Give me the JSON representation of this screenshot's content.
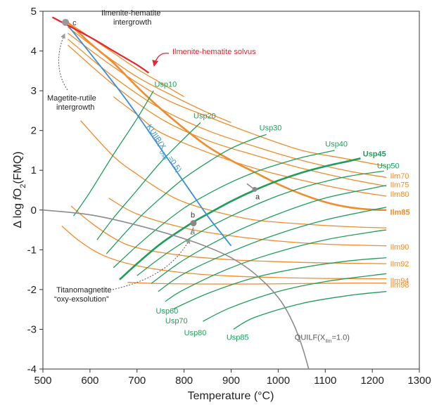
{
  "chart_data": {
    "type": "line",
    "title": "",
    "xlabel": "Temperature (°C)",
    "ylabel_parts": [
      "Δ log ",
      "f",
      "O",
      "2",
      "(FMQ)"
    ],
    "xlim": [
      500,
      1300
    ],
    "ylim": [
      -4,
      5
    ],
    "xticks": [
      500,
      600,
      700,
      800,
      900,
      1000,
      1100,
      1200,
      1300
    ],
    "yticks": [
      -4,
      -3,
      -2,
      -1,
      0,
      1,
      2,
      3,
      4,
      5
    ],
    "grid": false,
    "colors": {
      "ilm": "#f08c2c",
      "usp": "#1f9e5a",
      "kuiib": "#3a8fd6",
      "quilf": "#8c8c8c",
      "solvus": "#e8242c",
      "annot": "#333333"
    },
    "ilm_series": [
      {
        "name": "",
        "bold": false,
        "points": [
          [
            553,
            4.72
          ],
          [
            600,
            4.35
          ],
          [
            650,
            3.95
          ],
          [
            700,
            3.55
          ],
          [
            750,
            3.2
          ],
          [
            800,
            2.85
          ]
        ]
      },
      {
        "name": "",
        "bold": false,
        "points": [
          [
            553,
            4.6
          ],
          [
            620,
            4.0
          ],
          [
            700,
            3.35
          ],
          [
            780,
            2.85
          ],
          [
            850,
            2.45
          ],
          [
            900,
            2.2
          ]
        ]
      },
      {
        "name": "",
        "bold": false,
        "points": [
          [
            553,
            4.45
          ],
          [
            650,
            3.6
          ],
          [
            750,
            2.85
          ],
          [
            850,
            2.35
          ],
          [
            950,
            1.9
          ],
          [
            1050,
            1.5
          ],
          [
            1140,
            1.3
          ],
          [
            1230,
            1.1
          ]
        ]
      },
      {
        "name": "Ilm70",
        "bold": false,
        "points": [
          [
            553,
            4.3
          ],
          [
            650,
            3.35
          ],
          [
            750,
            2.55
          ],
          [
            850,
            2.0
          ],
          [
            950,
            1.6
          ],
          [
            1050,
            1.25
          ],
          [
            1150,
            0.98
          ],
          [
            1230,
            0.82
          ]
        ]
      },
      {
        "name": "Ilm75",
        "bold": false,
        "points": [
          [
            553,
            4.15
          ],
          [
            650,
            3.15
          ],
          [
            750,
            2.3
          ],
          [
            850,
            1.75
          ],
          [
            950,
            1.38
          ],
          [
            1050,
            1.05
          ],
          [
            1150,
            0.78
          ],
          [
            1230,
            0.6
          ]
        ]
      },
      {
        "name": "Ilm80",
        "bold": false,
        "points": [
          [
            650,
            2.85
          ],
          [
            700,
            2.4
          ],
          [
            750,
            1.95
          ],
          [
            850,
            1.45
          ],
          [
            950,
            1.05
          ],
          [
            1050,
            0.75
          ],
          [
            1150,
            0.5
          ],
          [
            1230,
            0.35
          ]
        ]
      },
      {
        "name": "Ilm85",
        "bold": true,
        "points": [
          [
            553,
            4.72
          ],
          [
            600,
            4.2
          ],
          [
            650,
            3.7
          ],
          [
            700,
            3.1
          ],
          [
            750,
            2.55
          ],
          [
            800,
            2.05
          ],
          [
            850,
            1.6
          ],
          [
            900,
            1.25
          ],
          [
            950,
            0.95
          ],
          [
            1000,
            0.65
          ],
          [
            1050,
            0.4
          ],
          [
            1100,
            0.2
          ],
          [
            1150,
            0.07
          ],
          [
            1200,
            0.01
          ],
          [
            1230,
            0.0
          ]
        ]
      },
      {
        "name": "",
        "bold": false,
        "points": [
          [
            580,
            2.25
          ],
          [
            650,
            1.35
          ],
          [
            700,
            0.9
          ],
          [
            750,
            0.5
          ],
          [
            800,
            0.2
          ],
          [
            870,
            -0.05
          ],
          [
            950,
            -0.25
          ],
          [
            1050,
            -0.35
          ],
          [
            1150,
            -0.42
          ],
          [
            1230,
            -0.45
          ]
        ]
      },
      {
        "name": "Ilm90",
        "bold": false,
        "points": [
          [
            640,
            0.3
          ],
          [
            700,
            -0.1
          ],
          [
            800,
            -0.45
          ],
          [
            900,
            -0.65
          ],
          [
            1000,
            -0.78
          ],
          [
            1100,
            -0.86
          ],
          [
            1230,
            -0.9
          ]
        ]
      },
      {
        "name": "Ilm92",
        "bold": false,
        "points": [
          [
            560,
            0.1
          ],
          [
            600,
            -0.3
          ],
          [
            650,
            -0.7
          ],
          [
            700,
            -0.95
          ],
          [
            800,
            -1.15
          ],
          [
            900,
            -1.25
          ],
          [
            1000,
            -1.3
          ],
          [
            1100,
            -1.33
          ],
          [
            1230,
            -1.35
          ]
        ]
      },
      {
        "name": "Ilm94",
        "bold": false,
        "points": [
          [
            540,
            -0.4
          ],
          [
            580,
            -0.8
          ],
          [
            630,
            -1.15
          ],
          [
            700,
            -1.4
          ],
          [
            800,
            -1.58
          ],
          [
            900,
            -1.66
          ],
          [
            1000,
            -1.7
          ],
          [
            1100,
            -1.72
          ],
          [
            1230,
            -1.73
          ]
        ]
      },
      {
        "name": "Ilm98",
        "bold": false,
        "points": [
          [
            680,
            -1.82
          ],
          [
            750,
            -1.85
          ],
          [
            850,
            -1.86
          ],
          [
            950,
            -1.86
          ],
          [
            1050,
            -1.85
          ],
          [
            1150,
            -1.84
          ],
          [
            1230,
            -1.84
          ]
        ]
      }
    ],
    "ilm_label_points": [
      [
        1238,
        0.86
      ],
      [
        1238,
        0.64
      ],
      [
        1238,
        0.4
      ],
      [
        1238,
        -0.05
      ],
      [
        1238,
        -0.92
      ],
      [
        1238,
        -1.35
      ],
      [
        1238,
        -1.77
      ],
      [
        1238,
        -1.88
      ]
    ],
    "usp_series": [
      {
        "name": "Usp10",
        "bold": false,
        "points": [
          [
            565,
            -0.15
          ],
          [
            600,
            0.45
          ],
          [
            650,
            1.4
          ],
          [
            700,
            2.3
          ],
          [
            735,
            3.0
          ]
        ]
      },
      {
        "name": "Usp20",
        "bold": false,
        "points": [
          [
            615,
            -0.75
          ],
          [
            650,
            -0.2
          ],
          [
            700,
            0.5
          ],
          [
            750,
            1.2
          ],
          [
            800,
            1.8
          ],
          [
            835,
            2.2
          ]
        ]
      },
      {
        "name": "Usp30",
        "bold": false,
        "points": [
          [
            635,
            -1.1
          ],
          [
            700,
            -0.25
          ],
          [
            750,
            0.3
          ],
          [
            800,
            0.8
          ],
          [
            850,
            1.2
          ],
          [
            900,
            1.55
          ],
          [
            950,
            1.8
          ],
          [
            975,
            1.9
          ]
        ]
      },
      {
        "name": "Usp40",
        "bold": false,
        "points": [
          [
            650,
            -1.45
          ],
          [
            700,
            -0.9
          ],
          [
            750,
            -0.4
          ],
          [
            800,
            0.05
          ],
          [
            850,
            0.4
          ],
          [
            900,
            0.7
          ],
          [
            950,
            0.95
          ],
          [
            1000,
            1.15
          ],
          [
            1050,
            1.32
          ],
          [
            1100,
            1.45
          ],
          [
            1120,
            1.5
          ]
        ]
      },
      {
        "name": "Usp45",
        "bold": true,
        "points": [
          [
            663,
            -1.75
          ],
          [
            700,
            -1.35
          ],
          [
            750,
            -0.85
          ],
          [
            800,
            -0.45
          ],
          [
            820,
            -0.3
          ],
          [
            850,
            -0.1
          ],
          [
            900,
            0.22
          ],
          [
            950,
            0.5
          ],
          [
            1000,
            0.74
          ],
          [
            1050,
            0.94
          ],
          [
            1100,
            1.1
          ],
          [
            1150,
            1.23
          ],
          [
            1175,
            1.3
          ]
        ]
      },
      {
        "name": "Usp50",
        "bold": false,
        "points": [
          [
            700,
            -1.65
          ],
          [
            750,
            -1.2
          ],
          [
            800,
            -0.8
          ],
          [
            850,
            -0.45
          ],
          [
            900,
            -0.15
          ],
          [
            950,
            0.12
          ],
          [
            1000,
            0.36
          ],
          [
            1050,
            0.56
          ],
          [
            1100,
            0.72
          ],
          [
            1150,
            0.85
          ],
          [
            1200,
            0.94
          ],
          [
            1225,
            0.98
          ]
        ]
      },
      {
        "name": "",
        "bold": false,
        "points": [
          [
            730,
            -1.85
          ],
          [
            800,
            -1.25
          ],
          [
            900,
            -0.6
          ],
          [
            1000,
            -0.1
          ],
          [
            1100,
            0.3
          ],
          [
            1200,
            0.55
          ],
          [
            1230,
            0.62
          ]
        ]
      },
      {
        "name": "",
        "bold": false,
        "points": [
          [
            745,
            -2.05
          ],
          [
            800,
            -1.6
          ],
          [
            900,
            -1.05
          ],
          [
            1000,
            -0.6
          ],
          [
            1100,
            -0.25
          ],
          [
            1200,
            0.0
          ],
          [
            1230,
            0.07
          ]
        ]
      },
      {
        "name": "Usp60",
        "bold": false,
        "points": [
          [
            760,
            -2.3
          ],
          [
            800,
            -2.0
          ],
          [
            900,
            -1.45
          ],
          [
            1000,
            -1.05
          ],
          [
            1100,
            -0.75
          ],
          [
            1200,
            -0.55
          ],
          [
            1230,
            -0.5
          ]
        ]
      },
      {
        "name": "Usp70",
        "bold": false,
        "points": [
          [
            775,
            -2.5
          ],
          [
            850,
            -2.1
          ],
          [
            950,
            -1.7
          ],
          [
            1050,
            -1.45
          ],
          [
            1150,
            -1.28
          ],
          [
            1230,
            -1.2
          ]
        ]
      },
      {
        "name": "Usp80",
        "bold": false,
        "points": [
          [
            840,
            -2.8
          ],
          [
            900,
            -2.45
          ],
          [
            1000,
            -2.05
          ],
          [
            1100,
            -1.8
          ],
          [
            1230,
            -1.6
          ]
        ]
      },
      {
        "name": "Usp85",
        "bold": false,
        "points": [
          [
            905,
            -3.0
          ],
          [
            950,
            -2.7
          ],
          [
            1050,
            -2.35
          ],
          [
            1150,
            -2.15
          ],
          [
            1230,
            -2.05
          ]
        ]
      }
    ],
    "usp_label_points": [
      [
        737,
        3.1
      ],
      [
        820,
        2.3
      ],
      [
        960,
        2.0
      ],
      [
        1100,
        1.6
      ],
      [
        1180,
        1.35
      ],
      [
        1210,
        1.05
      ],
      [
        740,
        -2.6
      ],
      [
        760,
        -2.85
      ],
      [
        800,
        -3.15
      ],
      [
        890,
        -3.27
      ]
    ],
    "kuiib": {
      "label_parts": [
        "KUIIB(X",
        "Usp",
        "=0.5)"
      ],
      "points": [
        [
          548,
          4.72
        ],
        [
          650,
          3.2
        ],
        [
          700,
          2.4
        ],
        [
          750,
          1.55
        ],
        [
          800,
          0.7
        ],
        [
          850,
          -0.15
        ],
        [
          880,
          -0.6
        ],
        [
          900,
          -0.9
        ]
      ],
      "label_point": [
        720,
        2.1
      ]
    },
    "quilf": {
      "label_parts": [
        "QUILF(X",
        "Ilm",
        "=1.0)"
      ],
      "points": [
        [
          500,
          0.0
        ],
        [
          600,
          -0.12
        ],
        [
          700,
          -0.38
        ],
        [
          800,
          -0.72
        ],
        [
          850,
          -0.93
        ],
        [
          900,
          -1.2
        ],
        [
          950,
          -1.6
        ],
        [
          1000,
          -2.2
        ],
        [
          1030,
          -2.8
        ],
        [
          1050,
          -3.4
        ],
        [
          1065,
          -4.0
        ]
      ],
      "label_point": [
        1035,
        -3.27
      ]
    },
    "solvus": {
      "points": [
        [
          520,
          4.85
        ],
        [
          600,
          4.35
        ],
        [
          650,
          4.0
        ],
        [
          700,
          3.65
        ],
        [
          725,
          3.45
        ]
      ]
    },
    "labels": {
      "ilm_hem_intergrowth": [
        "Ilmenite-hematite",
        "intergrowth"
      ],
      "ilm_hem_solvus": "Ilmenite-hematite solvus",
      "mag_rut_intergrowth": [
        "Magetite-rutile",
        "intergrowth"
      ],
      "titano_oxy": [
        "Titanomagnetite",
        "“oxy-exsolution”"
      ],
      "point_a_upper": "a",
      "point_b": "b",
      "point_c": "c",
      "point_a_lower": "a"
    },
    "points": {
      "a_upper": [
        950,
        0.52
      ],
      "b": [
        820,
        -0.33
      ],
      "c": [
        548,
        4.72
      ]
    }
  }
}
